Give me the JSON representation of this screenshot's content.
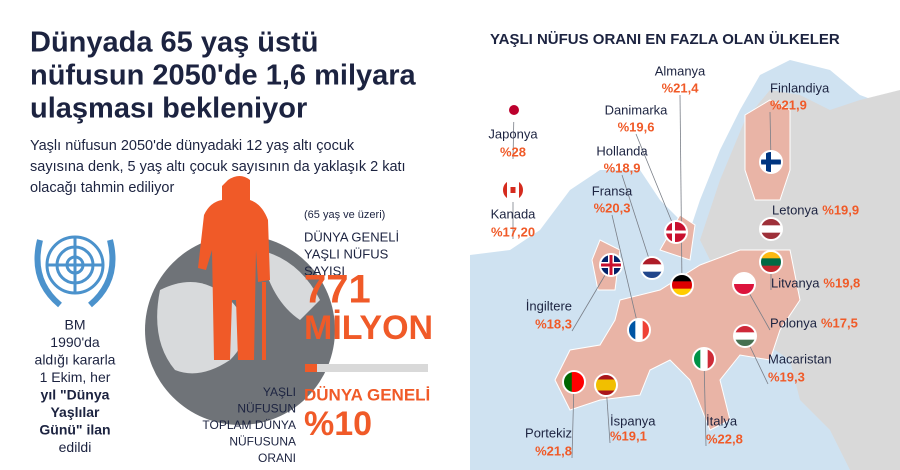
{
  "header": {
    "title": [
      "Dünyada 65 yaş üstü",
      "nüfusun 2050'de 1,6 milyara",
      "ulaşması bekleniyor"
    ],
    "subtitle": [
      "Yaşlı nüfusun 2050'de dünyadaki 12 yaş altı çocuk",
      "sayısına denk, 5 yaş altı çocuk sayısının da yaklaşık 2 katı",
      "olacağı tahmin ediliyor"
    ]
  },
  "un_note": [
    "BM",
    "1990'da",
    "aldığı kararla",
    "1 Ekim, her",
    "yıl \"Dünya",
    "Yaşlılar",
    "Günü\" ilan",
    "edildi"
  ],
  "stats": {
    "age_note": "(65 yaş ve üzeri)",
    "world_label": [
      "DÜNYA GENELİ",
      "YAŞLI NÜFUS",
      "SAYISI"
    ],
    "world_value": [
      "771",
      "MİLYON"
    ],
    "share_label": [
      "YAŞLI",
      "NÜFUSUN",
      "TOPLAM DÜNYA",
      "NÜFUSUNA",
      "ORANI"
    ],
    "share_title": "DÜNYA GENELİ",
    "share_value": "%10"
  },
  "map": {
    "title": "YAŞLI NÜFUS ORANI EN FAZLA OLAN ÜLKELER",
    "countries": [
      {
        "name": "Japonya",
        "value": "%28"
      },
      {
        "name": "Kanada",
        "value": "%17,20"
      },
      {
        "name": "Almanya",
        "value": "%21,4"
      },
      {
        "name": "Danimarka",
        "value": "%19,6"
      },
      {
        "name": "Hollanda",
        "value": "%18,9"
      },
      {
        "name": "Fransa",
        "value": "%20,3"
      },
      {
        "name": "İngiltere",
        "value": "%18,3"
      },
      {
        "name": "Finlandiya",
        "value": "%21,9"
      },
      {
        "name": "Letonya",
        "value": "%19,9"
      },
      {
        "name": "Litvanya",
        "value": "%19,8"
      },
      {
        "name": "Polonya",
        "value": "%17,5"
      },
      {
        "name": "Macaristan",
        "value": "%19,3"
      },
      {
        "name": "İtalya",
        "value": "%22,8"
      },
      {
        "name": "İspanya",
        "value": "%19,1"
      },
      {
        "name": "Portekiz",
        "value": "%21,8"
      }
    ]
  }
}
